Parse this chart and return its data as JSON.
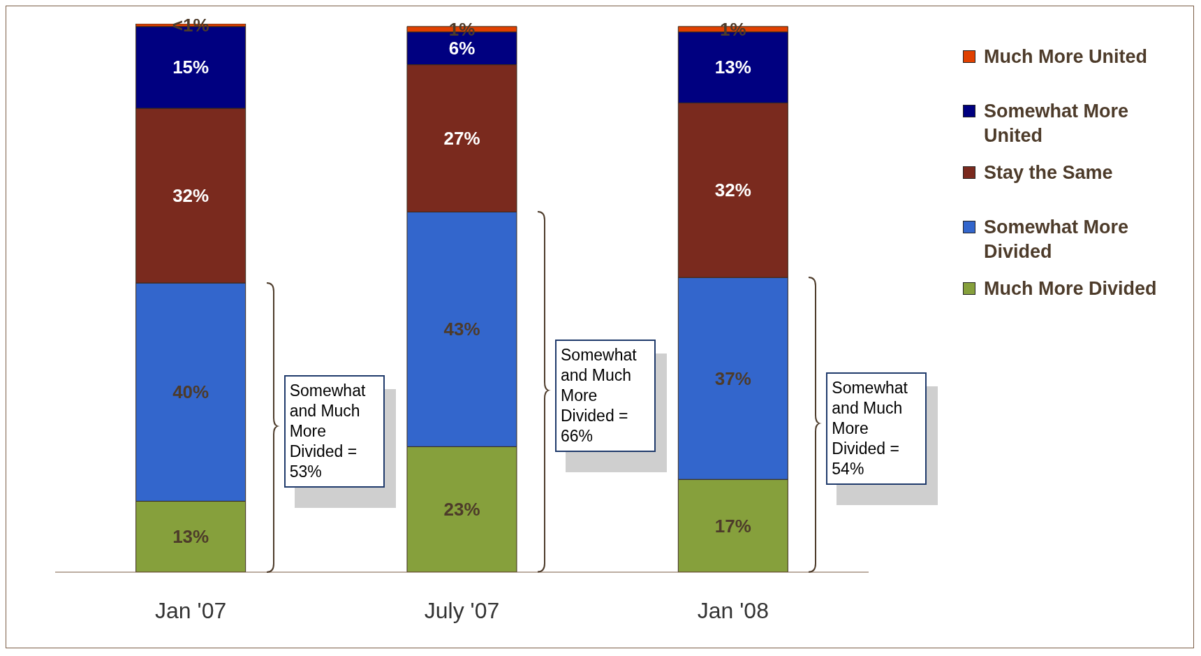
{
  "chart_data": {
    "type": "bar",
    "stacked": true,
    "categories": [
      "Jan '07",
      "July '07",
      "Jan '08"
    ],
    "series": [
      {
        "name": "Much More Divided",
        "color": "#86a03c",
        "values": [
          13,
          23,
          17
        ],
        "value_labels": [
          "13%",
          "23%",
          "17%"
        ]
      },
      {
        "name": "Somewhat More Divided",
        "color": "#3366cc",
        "values": [
          40,
          43,
          37
        ],
        "value_labels": [
          "40%",
          "43%",
          "37%"
        ]
      },
      {
        "name": "Stay the Same",
        "color": "#7a2a1e",
        "values": [
          32,
          27,
          32
        ],
        "value_labels": [
          "32%",
          "27%",
          "32%"
        ]
      },
      {
        "name": "Somewhat More United",
        "color": "#000080",
        "values": [
          15,
          6,
          13
        ],
        "value_labels": [
          "15%",
          "6%",
          "13%"
        ]
      },
      {
        "name": "Much More United",
        "color": "#e04000",
        "values": [
          0.5,
          1,
          1
        ],
        "value_labels": [
          "<1%",
          "1%",
          "1%"
        ]
      }
    ],
    "legend": "right",
    "annotations": [
      "Somewhat and Much More Divided = 53%",
      "Somewhat and Much More Divided = 66%",
      "Somewhat and Much More Divided = 54%"
    ]
  }
}
